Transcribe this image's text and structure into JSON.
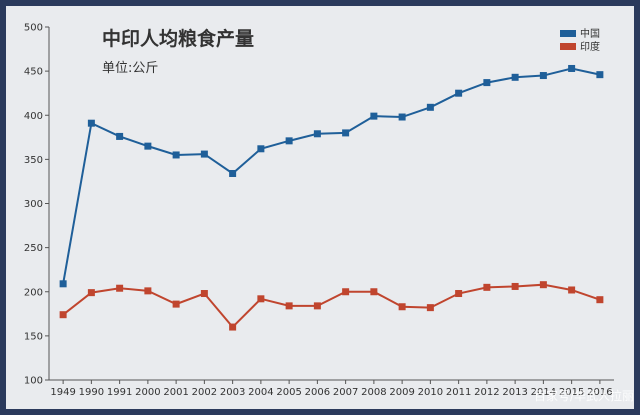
{
  "chart_data": {
    "type": "line",
    "title": "中印人均粮食产量",
    "subtitle": "单位:公斤",
    "categories": [
      "1949",
      "1990",
      "1991",
      "2000",
      "2001",
      "2002",
      "2003",
      "2004",
      "2005",
      "2006",
      "2007",
      "2008",
      "2009",
      "2010",
      "2011",
      "2012",
      "2013",
      "2014",
      "2015",
      "2016"
    ],
    "ylim": [
      100,
      500
    ],
    "yticks": [
      100,
      150,
      200,
      250,
      300,
      350,
      400,
      450,
      500
    ],
    "grid": false,
    "legend_position": "top-right",
    "series": [
      {
        "name": "中国",
        "color": "#1f5f99",
        "values": [
          209,
          391,
          376,
          365,
          355,
          356,
          334,
          362,
          371,
          379,
          380,
          399,
          398,
          409,
          425,
          437,
          443,
          445,
          453,
          446
        ]
      },
      {
        "name": "印度",
        "color": "#c0452e",
        "values": [
          174,
          199,
          204,
          201,
          186,
          198,
          160,
          192,
          184,
          184,
          200,
          200,
          183,
          182,
          198,
          205,
          206,
          208,
          202,
          191
        ]
      }
    ]
  },
  "watermark": "百家号/华武人拉丽"
}
